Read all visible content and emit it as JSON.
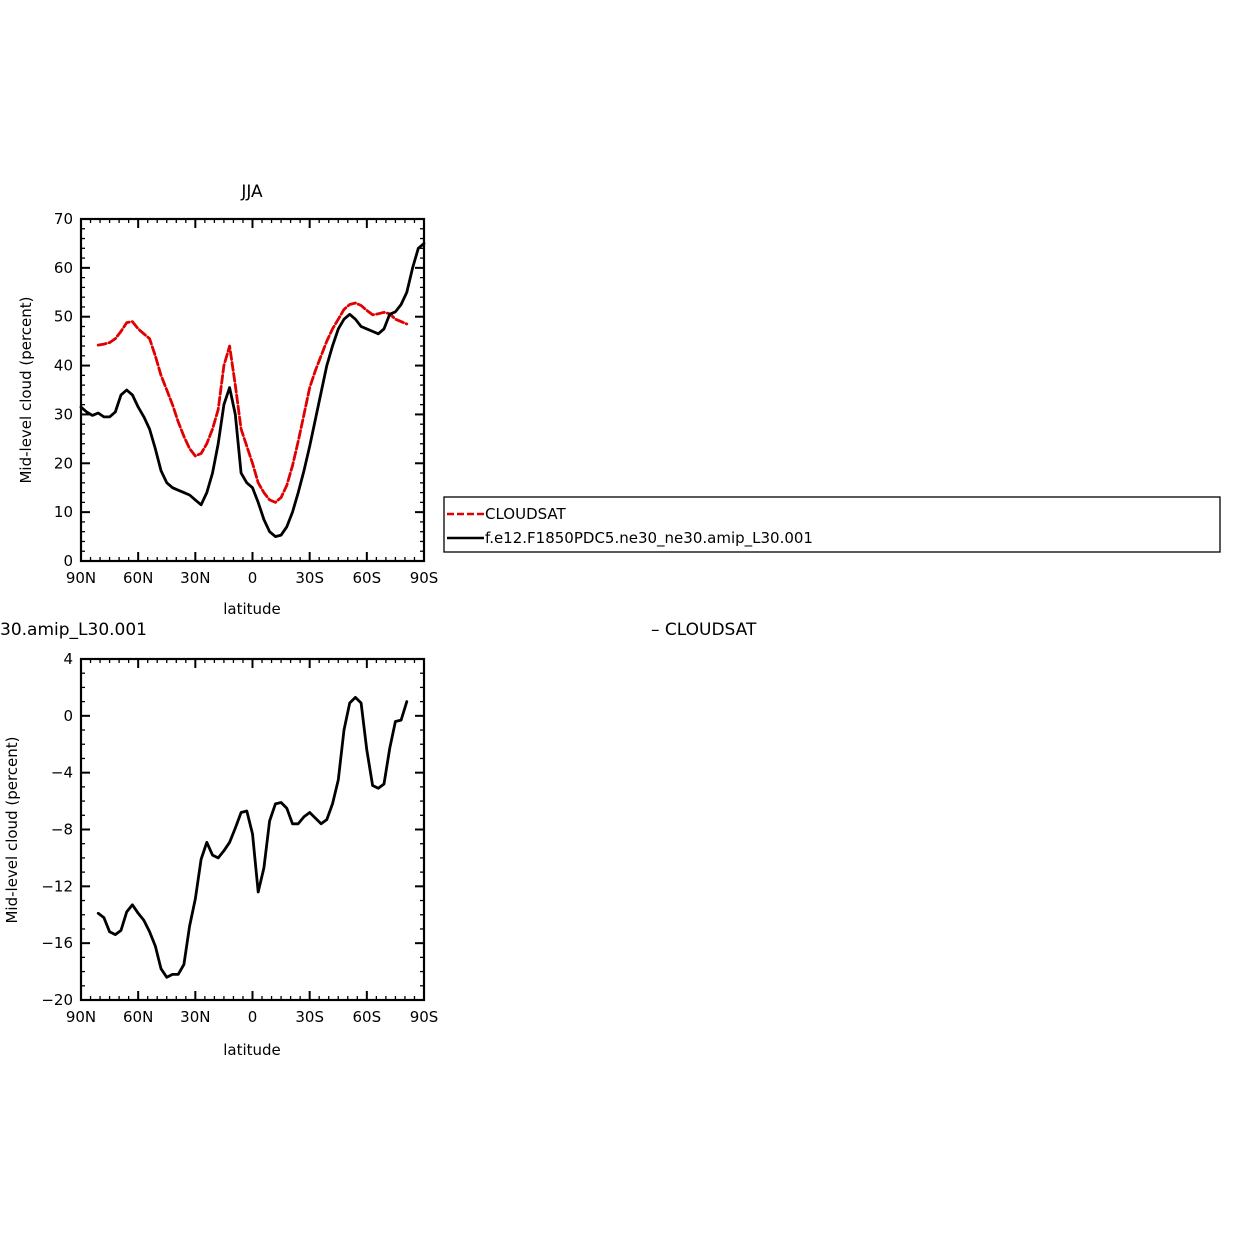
{
  "chart_data": [
    {
      "type": "line",
      "title": "JJA",
      "xlabel": "latitude",
      "ylabel": "Mid-level cloud (percent)",
      "xlim": [
        90,
        -90
      ],
      "ylim": [
        0,
        70
      ],
      "xticks": [
        90,
        60,
        30,
        0,
        -30,
        -60,
        -90
      ],
      "xtick_labels": [
        "90N",
        "60N",
        "30N",
        "0",
        "30S",
        "60S",
        "90S"
      ],
      "yticks": [
        0,
        10,
        20,
        30,
        40,
        50,
        60,
        70
      ],
      "ytick_labels": [
        "0",
        "10",
        "20",
        "30",
        "40",
        "50",
        "60",
        "70"
      ],
      "legend": {
        "placement": "right",
        "entries": [
          "CLOUDSAT",
          "f.e12.F1850PDC5.ne30_ne30.amip_L30.001"
        ]
      },
      "series": [
        {
          "name": "CLOUDSAT",
          "color": "#e00000",
          "dash": "dashed",
          "x": [
            81,
            78,
            75,
            72,
            69,
            66,
            63,
            60,
            57,
            54,
            51,
            48,
            45,
            42,
            39,
            36,
            33,
            30,
            27,
            24,
            21,
            18,
            15,
            12,
            9,
            6,
            3,
            0,
            -3,
            -6,
            -9,
            -12,
            -15,
            -18,
            -21,
            -24,
            -27,
            -30,
            -33,
            -36,
            -39,
            -42,
            -45,
            -48,
            -51,
            -54,
            -57,
            -60,
            -63,
            -66,
            -69,
            -72,
            -75,
            -78,
            -81
          ],
          "y": [
            44.2,
            44.4,
            44.7,
            45.5,
            47,
            48.8,
            49,
            47.5,
            46.5,
            45.5,
            42,
            38,
            35,
            32,
            28.5,
            25.5,
            23,
            21.5,
            22,
            24,
            27,
            31,
            40,
            44,
            36,
            27,
            23.5,
            20,
            16,
            14,
            12.5,
            12,
            13,
            15.5,
            19.5,
            24.5,
            30,
            35.5,
            39,
            42,
            45,
            47.5,
            49.5,
            51.5,
            52.5,
            52.8,
            52.3,
            51.3,
            50.4,
            50.6,
            50.9,
            50.6,
            49.5,
            49,
            48.5
          ]
        },
        {
          "name": "f.e12.F1850PDC5.ne30_ne30.amip_L30.001",
          "color": "#000000",
          "dash": "solid",
          "x": [
            90,
            87,
            84,
            81,
            78,
            75,
            72,
            69,
            66,
            63,
            60,
            57,
            54,
            51,
            48,
            45,
            42,
            39,
            36,
            33,
            30,
            27,
            24,
            21,
            18,
            15,
            12,
            9,
            6,
            3,
            0,
            -3,
            -6,
            -9,
            -12,
            -15,
            -18,
            -21,
            -24,
            -27,
            -30,
            -33,
            -36,
            -39,
            -42,
            -45,
            -48,
            -51,
            -54,
            -57,
            -60,
            -63,
            -66,
            -69,
            -72,
            -75,
            -78,
            -81,
            -84,
            -87,
            -90
          ],
          "y": [
            31.5,
            30.5,
            29.8,
            30.3,
            29.5,
            29.5,
            30.5,
            34,
            35,
            34,
            31.5,
            29.5,
            27,
            23,
            18.5,
            16,
            15,
            14.5,
            14,
            13.5,
            12.5,
            11.5,
            14,
            18,
            24,
            32,
            35.5,
            30,
            18,
            16,
            15,
            12,
            8.5,
            6,
            5,
            5.3,
            7,
            10,
            14,
            18.5,
            23.5,
            29,
            34.5,
            40,
            44,
            47.5,
            49.5,
            50.5,
            49.5,
            48,
            47.5,
            47,
            46.5,
            47.5,
            50.5,
            51,
            52.5,
            55,
            60,
            64,
            65
          ]
        }
      ]
    },
    {
      "type": "line",
      "title": "30.amip_L30.001",
      "title_right": "–  CLOUDSAT",
      "xlabel": "latitude",
      "ylabel": "Mid-level cloud (percent)",
      "xlim": [
        90,
        -90
      ],
      "ylim": [
        -20,
        4
      ],
      "xticks": [
        90,
        60,
        30,
        0,
        -30,
        -60,
        -90
      ],
      "xtick_labels": [
        "90N",
        "60N",
        "30N",
        "0",
        "30S",
        "60S",
        "90S"
      ],
      "yticks": [
        -20,
        -16,
        -12,
        -8,
        -4,
        0,
        4
      ],
      "ytick_labels": [
        "−20",
        "−16",
        "−12",
        "−8",
        "−4",
        "0",
        "4"
      ],
      "series": [
        {
          "color": "#000000",
          "dash": "solid",
          "x": [
            81,
            78,
            75,
            72,
            69,
            66,
            63,
            60,
            57,
            54,
            51,
            48,
            45,
            42,
            39,
            36,
            33,
            30,
            27,
            24,
            21,
            18,
            15,
            12,
            9,
            6,
            3,
            0,
            -3,
            -6,
            -9,
            -12,
            -15,
            -18,
            -21,
            -24,
            -27,
            -30,
            -33,
            -36,
            -39,
            -42,
            -45,
            -48,
            -51,
            -54,
            -57,
            -60,
            -63,
            -66,
            -69,
            -72,
            -75,
            -78,
            -81
          ],
          "y": [
            -13.9,
            -14.2,
            -15.2,
            -15.4,
            -15.1,
            -13.8,
            -13.3,
            -13.9,
            -14.4,
            -15.2,
            -16.2,
            -17.8,
            -18.4,
            -18.2,
            -18.2,
            -17.5,
            -14.8,
            -12.9,
            -10.1,
            -8.9,
            -9.8,
            -10,
            -9.5,
            -8.9,
            -7.9,
            -6.8,
            -6.7,
            -8.3,
            -12.4,
            -10.7,
            -7.4,
            -6.2,
            -6.1,
            -6.5,
            -7.6,
            -7.6,
            -7.1,
            -6.8,
            -7.2,
            -7.6,
            -7.3,
            -6.2,
            -4.5,
            -1,
            0.9,
            1.3,
            0.9,
            -2.4,
            -4.9,
            -5.1,
            -4.8,
            -2.3,
            -0.4,
            -0.3,
            1
          ]
        }
      ]
    }
  ]
}
